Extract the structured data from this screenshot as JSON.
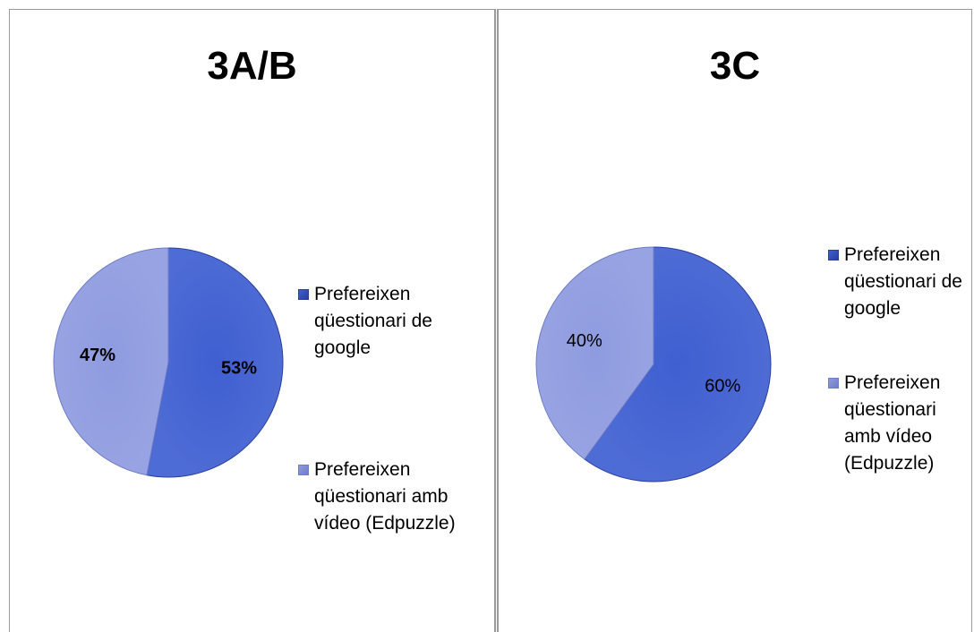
{
  "colors": {
    "slice1": "#3F5FD1",
    "slice2": "#8E9BDF",
    "slice1_edge": "#2A3F9C",
    "slice2_edge": "#6F7CC6"
  },
  "chart_data": [
    {
      "type": "pie",
      "title": "3A/B",
      "categories": [
        "Prefereixen qüestionari de google",
        "Prefereixen qüestionari amb vídeo (Edpuzzle)"
      ],
      "values": [
        53,
        47
      ],
      "labels": [
        "53%",
        "47%"
      ],
      "label_bold": true,
      "legend": "right"
    },
    {
      "type": "pie",
      "title": "3C",
      "categories": [
        "Prefereixen qüestionari de google",
        "Prefereixen qüestionari amb vídeo (Edpuzzle)"
      ],
      "values": [
        60,
        40
      ],
      "labels": [
        "60%",
        "40%"
      ],
      "label_bold": false,
      "legend": "right"
    }
  ]
}
